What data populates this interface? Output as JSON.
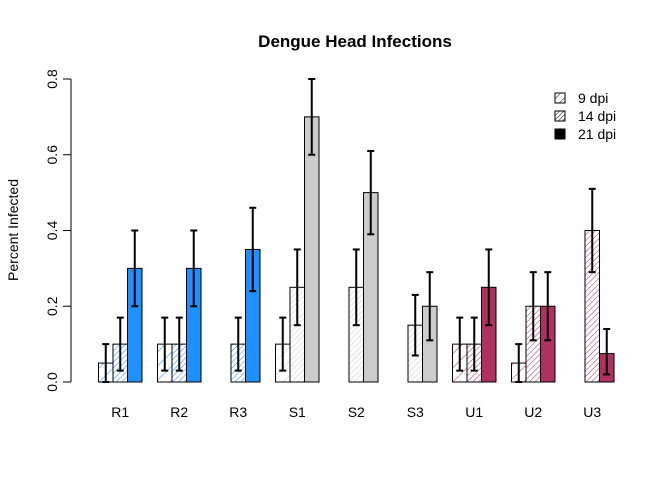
{
  "chart_data": {
    "type": "bar",
    "title": "Dengue Head Infections",
    "xlabel": "",
    "ylabel": "Percent Infected",
    "ylim": [
      0,
      0.8
    ],
    "yticks": [
      "0.0",
      "0.2",
      "0.4",
      "0.6",
      "0.8"
    ],
    "grid": false,
    "legend_position": "top-right",
    "categories": [
      "R1",
      "R2",
      "R3",
      "S1",
      "S2",
      "S3",
      "U1",
      "U2",
      "U3"
    ],
    "category_colors": [
      "#1e90ff",
      "#1e90ff",
      "#1e90ff",
      "#cccccc",
      "#cccccc",
      "#cccccc",
      "#b03060",
      "#b03060",
      "#b03060"
    ],
    "series": [
      {
        "name": "9 dpi",
        "fill": "sparse-hatch",
        "values": [
          0.05,
          0.1,
          0.0,
          0.1,
          0.0,
          0.0,
          0.1,
          0.05,
          0.0
        ],
        "err_low": [
          0.0,
          0.03,
          0.0,
          0.03,
          0.0,
          0.0,
          0.03,
          0.0,
          0.0
        ],
        "err_high": [
          0.1,
          0.17,
          0.0,
          0.17,
          0.0,
          0.0,
          0.17,
          0.1,
          0.0
        ]
      },
      {
        "name": "14 dpi",
        "fill": "dense-hatch",
        "values": [
          0.1,
          0.1,
          0.1,
          0.25,
          0.25,
          0.15,
          0.1,
          0.2,
          0.4
        ],
        "err_low": [
          0.03,
          0.03,
          0.03,
          0.15,
          0.15,
          0.07,
          0.03,
          0.11,
          0.29
        ],
        "err_high": [
          0.17,
          0.17,
          0.17,
          0.35,
          0.35,
          0.23,
          0.17,
          0.29,
          0.51
        ]
      },
      {
        "name": "21 dpi",
        "fill": "solid",
        "values": [
          0.3,
          0.3,
          0.35,
          0.7,
          0.5,
          0.2,
          0.25,
          0.2,
          0.075
        ],
        "err_low": [
          0.2,
          0.2,
          0.24,
          0.6,
          0.39,
          0.11,
          0.15,
          0.11,
          0.02
        ],
        "err_high": [
          0.4,
          0.4,
          0.46,
          0.8,
          0.61,
          0.29,
          0.35,
          0.29,
          0.14
        ]
      }
    ]
  }
}
